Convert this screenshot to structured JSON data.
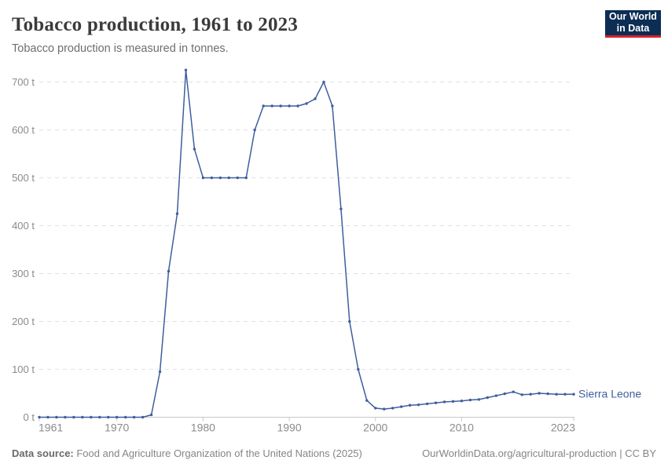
{
  "header": {
    "title": "Tobacco production, 1961 to 2023",
    "subtitle": "Tobacco production is measured in tonnes.",
    "logo": {
      "line1": "Our World",
      "line2": "in Data"
    }
  },
  "footer": {
    "source_label": "Data source:",
    "source_text": " Food and Agriculture Organization of the United Nations (2025)",
    "citation_text": "OurWorldinData.org/agricultural-production | CC BY"
  },
  "colors": {
    "background": "#ffffff",
    "title": "#3b3b3b",
    "subtitle": "#6e6e6e",
    "line": "#3f5e9e",
    "series_label": "#3f5e9e",
    "grid": "#e2e2e2",
    "axis": "#c8c8c8",
    "tick_label": "#8b8b8b",
    "footer_text": "#858585",
    "logo_bg": "#0c2d54",
    "logo_red": "#d8232a"
  },
  "chart_data": {
    "type": "line",
    "title": "Tobacco production, 1961 to 2023",
    "unit": "tonnes",
    "xlabel": "",
    "ylabel": "",
    "xlim": [
      1961,
      2023
    ],
    "ylim": [
      0,
      700
    ],
    "grid": "horizontal-dashed",
    "legend_position": "label-at-line-end",
    "x_ticks": [
      {
        "year": 1961,
        "label": "1961",
        "mark": true,
        "anchor": "start"
      },
      {
        "year": 1970,
        "label": "1970",
        "mark": true,
        "anchor": "middle"
      },
      {
        "year": 1980,
        "label": "1980",
        "mark": true,
        "anchor": "middle"
      },
      {
        "year": 1990,
        "label": "1990",
        "mark": true,
        "anchor": "middle"
      },
      {
        "year": 2000,
        "label": "2000",
        "mark": true,
        "anchor": "middle"
      },
      {
        "year": 2010,
        "label": "2010",
        "mark": true,
        "anchor": "middle"
      },
      {
        "year": 2023,
        "label": "2023",
        "mark": true,
        "anchor": "end"
      }
    ],
    "y_ticks": [
      {
        "value": 0,
        "label": "0 t"
      },
      {
        "value": 100,
        "label": "100 t"
      },
      {
        "value": 200,
        "label": "200 t"
      },
      {
        "value": 300,
        "label": "300 t"
      },
      {
        "value": 400,
        "label": "400 t"
      },
      {
        "value": 500,
        "label": "500 t"
      },
      {
        "value": 600,
        "label": "600 t"
      },
      {
        "value": 700,
        "label": "700 t"
      }
    ],
    "series": [
      {
        "name": "Sierra Leone",
        "color": "#3f5e9e",
        "x": [
          1961,
          1962,
          1963,
          1964,
          1965,
          1966,
          1967,
          1968,
          1969,
          1970,
          1971,
          1972,
          1973,
          1974,
          1975,
          1976,
          1977,
          1978,
          1979,
          1980,
          1981,
          1982,
          1983,
          1984,
          1985,
          1986,
          1987,
          1988,
          1989,
          1990,
          1991,
          1992,
          1993,
          1994,
          1995,
          1996,
          1997,
          1998,
          1999,
          2000,
          2001,
          2002,
          2003,
          2004,
          2005,
          2006,
          2007,
          2008,
          2009,
          2010,
          2011,
          2012,
          2013,
          2014,
          2015,
          2016,
          2017,
          2018,
          2019,
          2020,
          2021,
          2022,
          2023
        ],
        "values": [
          0,
          0,
          0,
          0,
          0,
          0,
          0,
          0,
          0,
          0,
          0,
          0,
          0,
          5,
          95,
          305,
          425,
          725,
          560,
          500,
          500,
          500,
          500,
          500,
          500,
          600,
          650,
          650,
          650,
          650,
          650,
          655,
          665,
          700,
          650,
          435,
          200,
          100,
          35,
          19,
          17,
          19,
          22,
          25,
          26,
          28,
          30,
          32,
          33,
          34,
          36,
          37,
          41,
          45,
          49,
          53,
          47,
          48,
          50,
          49,
          48,
          48,
          48
        ]
      }
    ]
  }
}
